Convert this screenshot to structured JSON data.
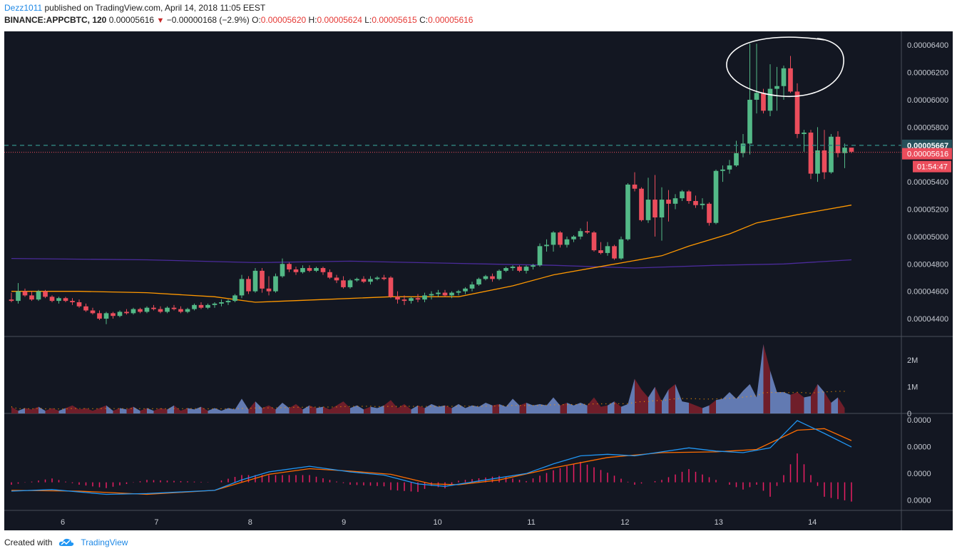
{
  "header": {
    "author": "Dezz1011",
    "published_text": "published on TradingView.com, April 14, 2018 11:05 EEST",
    "symbol": "BINANCE:APPCBTC, 120",
    "last": "0.00005616",
    "change": "−0.00000168 (−2.9%)",
    "o_label": "O:",
    "o": "0.00005620",
    "h_label": "H:",
    "h": "0.00005624",
    "l_label": "L:",
    "l": "0.00005615",
    "c_label": "C:",
    "c": "0.00005616"
  },
  "footer": {
    "created_with": "Created with",
    "brand": "TradingView"
  },
  "colors": {
    "background": "#131722",
    "up": "#53b987",
    "down": "#eb4d5c",
    "ma_fast": "#ff9800",
    "ma_slow": "#4a2b9a",
    "macd": "#2196f3",
    "signal": "#ff6d00",
    "hist": "#e91e63",
    "vol_up": "#6b85c2",
    "vol_down": "#7a1f2b"
  },
  "chart_data": [
    {
      "type": "candlestick",
      "y_axis_ticks": [
        "0.00006400",
        "0.00006200",
        "0.00006000",
        "0.00005800",
        "0.00005400",
        "0.00005200",
        "0.00005000",
        "0.00004800",
        "0.00004600",
        "0.00004400"
      ],
      "ylim": [
        4.27e-05,
        6.5e-05
      ],
      "x_tick_labels": [
        "6",
        "7",
        "8",
        "9",
        "10",
        "11",
        "12",
        "13",
        "14"
      ],
      "price_labels": {
        "line": "0.00005667",
        "last": "0.00005616",
        "countdown": "01:54:47"
      },
      "candles_ohlc_e8": [
        [
          4540,
          4590,
          4520,
          4530
        ],
        [
          4530,
          4660,
          4510,
          4600
        ],
        [
          4600,
          4620,
          4560,
          4570
        ],
        [
          4570,
          4600,
          4530,
          4540
        ],
        [
          4540,
          4610,
          4530,
          4600
        ],
        [
          4600,
          4610,
          4550,
          4560
        ],
        [
          4560,
          4570,
          4520,
          4530
        ],
        [
          4530,
          4560,
          4510,
          4550
        ],
        [
          4550,
          4560,
          4520,
          4530
        ],
        [
          4530,
          4550,
          4500,
          4520
        ],
        [
          4520,
          4540,
          4480,
          4490
        ],
        [
          4490,
          4510,
          4450,
          4460
        ],
        [
          4460,
          4480,
          4430,
          4440
        ],
        [
          4440,
          4460,
          4390,
          4400
        ],
        [
          4400,
          4450,
          4360,
          4440
        ],
        [
          4440,
          4450,
          4400,
          4420
        ],
        [
          4420,
          4460,
          4410,
          4450
        ],
        [
          4450,
          4470,
          4430,
          4440
        ],
        [
          4440,
          4480,
          4430,
          4470
        ],
        [
          4470,
          4480,
          4440,
          4450
        ],
        [
          4450,
          4490,
          4440,
          4480
        ],
        [
          4480,
          4500,
          4460,
          4470
        ],
        [
          4470,
          4490,
          4440,
          4450
        ],
        [
          4450,
          4490,
          4440,
          4480
        ],
        [
          4480,
          4500,
          4460,
          4470
        ],
        [
          4470,
          4490,
          4440,
          4450
        ],
        [
          4450,
          4480,
          4440,
          4470
        ],
        [
          4470,
          4510,
          4460,
          4500
        ],
        [
          4500,
          4520,
          4470,
          4480
        ],
        [
          4480,
          4510,
          4470,
          4500
        ],
        [
          4500,
          4520,
          4480,
          4510
        ],
        [
          4510,
          4540,
          4490,
          4520
        ],
        [
          4520,
          4540,
          4500,
          4530
        ],
        [
          4530,
          4580,
          4520,
          4570
        ],
        [
          4570,
          4720,
          4550,
          4690
        ],
        [
          4690,
          4710,
          4580,
          4600
        ],
        [
          4600,
          4770,
          4590,
          4750
        ],
        [
          4750,
          4770,
          4590,
          4620
        ],
        [
          4620,
          4710,
          4570,
          4600
        ],
        [
          4600,
          4730,
          4590,
          4710
        ],
        [
          4710,
          4840,
          4700,
          4800
        ],
        [
          4800,
          4810,
          4740,
          4760
        ],
        [
          4760,
          4780,
          4720,
          4740
        ],
        [
          4740,
          4790,
          4730,
          4770
        ],
        [
          4770,
          4790,
          4740,
          4750
        ],
        [
          4750,
          4780,
          4740,
          4770
        ],
        [
          4770,
          4780,
          4720,
          4740
        ],
        [
          4740,
          4760,
          4690,
          4700
        ],
        [
          4700,
          4720,
          4660,
          4680
        ],
        [
          4680,
          4710,
          4620,
          4630
        ],
        [
          4630,
          4690,
          4620,
          4680
        ],
        [
          4680,
          4700,
          4670,
          4690
        ],
        [
          4690,
          4710,
          4660,
          4670
        ],
        [
          4670,
          4710,
          4650,
          4690
        ],
        [
          4690,
          4710,
          4680,
          4700
        ],
        [
          4700,
          4720,
          4680,
          4690
        ],
        [
          4700,
          4710,
          4550,
          4560
        ],
        [
          4560,
          4600,
          4510,
          4540
        ],
        [
          4540,
          4570,
          4500,
          4530
        ],
        [
          4530,
          4560,
          4510,
          4550
        ],
        [
          4550,
          4580,
          4520,
          4540
        ],
        [
          4540,
          4590,
          4520,
          4570
        ],
        [
          4570,
          4600,
          4540,
          4580
        ],
        [
          4580,
          4610,
          4560,
          4590
        ],
        [
          4590,
          4610,
          4560,
          4570
        ],
        [
          4570,
          4600,
          4550,
          4590
        ],
        [
          4590,
          4610,
          4570,
          4600
        ],
        [
          4600,
          4630,
          4580,
          4620
        ],
        [
          4620,
          4670,
          4600,
          4650
        ],
        [
          4650,
          4700,
          4640,
          4690
        ],
        [
          4690,
          4720,
          4680,
          4710
        ],
        [
          4710,
          4730,
          4670,
          4690
        ],
        [
          4690,
          4760,
          4680,
          4750
        ],
        [
          4750,
          4780,
          4740,
          4770
        ],
        [
          4770,
          4790,
          4750,
          4780
        ],
        [
          4780,
          4790,
          4740,
          4750
        ],
        [
          4750,
          4790,
          4730,
          4780
        ],
        [
          4780,
          4800,
          4760,
          4790
        ],
        [
          4790,
          4950,
          4780,
          4930
        ],
        [
          4930,
          4980,
          4890,
          4940
        ],
        [
          4940,
          5040,
          4890,
          5030
        ],
        [
          5030,
          5040,
          4920,
          4940
        ],
        [
          4940,
          5000,
          4920,
          4980
        ],
        [
          4980,
          5010,
          4960,
          5000
        ],
        [
          5000,
          5060,
          4980,
          5040
        ],
        [
          5040,
          5110,
          5020,
          5030
        ],
        [
          5030,
          5040,
          4890,
          4900
        ],
        [
          4900,
          4960,
          4870,
          4880
        ],
        [
          4880,
          4960,
          4860,
          4930
        ],
        [
          4930,
          4940,
          4830,
          4840
        ],
        [
          4840,
          5000,
          4830,
          4980
        ],
        [
          4980,
          5390,
          4970,
          5380
        ],
        [
          5380,
          5470,
          5330,
          5350
        ],
        [
          5350,
          5360,
          5110,
          5120
        ],
        [
          5120,
          5430,
          5100,
          5270
        ],
        [
          5270,
          5450,
          5000,
          5140
        ],
        [
          5140,
          5360,
          4970,
          5270
        ],
        [
          5270,
          5340,
          5110,
          5240
        ],
        [
          5240,
          5310,
          5200,
          5280
        ],
        [
          5280,
          5340,
          5260,
          5330
        ],
        [
          5330,
          5340,
          5240,
          5260
        ],
        [
          5260,
          5300,
          5210,
          5230
        ],
        [
          5230,
          5280,
          5200,
          5240
        ],
        [
          5240,
          5250,
          5080,
          5100
        ],
        [
          5100,
          5490,
          5090,
          5480
        ],
        [
          5480,
          5520,
          5400,
          5490
        ],
        [
          5490,
          5560,
          5460,
          5520
        ],
        [
          5520,
          5700,
          5510,
          5610
        ],
        [
          5610,
          5750,
          5580,
          5680
        ],
        [
          5680,
          6410,
          5600,
          6000
        ],
        [
          6000,
          6410,
          5900,
          6050
        ],
        [
          6050,
          6080,
          5900,
          5920
        ],
        [
          5920,
          6260,
          5880,
          6080
        ],
        [
          6080,
          6240,
          5920,
          6100
        ],
        [
          6100,
          6250,
          6000,
          6230
        ],
        [
          6230,
          6320,
          6050,
          6060
        ],
        [
          6060,
          6120,
          5720,
          5750
        ],
        [
          5750,
          5780,
          5620,
          5760
        ],
        [
          5760,
          5780,
          5420,
          5460
        ],
        [
          5460,
          5800,
          5400,
          5630
        ],
        [
          5630,
          5780,
          5420,
          5470
        ],
        [
          5470,
          5750,
          5460,
          5730
        ],
        [
          5730,
          5770,
          5580,
          5610
        ],
        [
          5610,
          5680,
          5500,
          5650
        ],
        [
          5650,
          5650,
          5610,
          5620
        ]
      ],
      "ma_fast_e8": [
        [
          0,
          4600
        ],
        [
          10,
          4600
        ],
        [
          20,
          4590
        ],
        [
          30,
          4560
        ],
        [
          36,
          4520
        ],
        [
          46,
          4540
        ],
        [
          56,
          4560
        ],
        [
          66,
          4560
        ],
        [
          74,
          4640
        ],
        [
          80,
          4720
        ],
        [
          88,
          4790
        ],
        [
          96,
          4860
        ],
        [
          100,
          4930
        ],
        [
          106,
          5020
        ],
        [
          110,
          5100
        ],
        [
          116,
          5160
        ],
        [
          124,
          5230
        ]
      ],
      "ma_slow_e8": [
        [
          0,
          4840
        ],
        [
          20,
          4830
        ],
        [
          36,
          4810
        ],
        [
          50,
          4820
        ],
        [
          60,
          4810
        ],
        [
          70,
          4800
        ],
        [
          80,
          4790
        ],
        [
          92,
          4770
        ],
        [
          104,
          4790
        ],
        [
          114,
          4800
        ],
        [
          124,
          4830
        ]
      ]
    },
    {
      "type": "area",
      "name": "Volume",
      "y_axis_ticks": [
        "2M",
        "1M",
        "0"
      ],
      "ylim": [
        0,
        2.7
      ],
      "values_m": [
        0.25,
        0.1,
        0.2,
        0.15,
        0.25,
        0.1,
        0.2,
        0.1,
        0.2,
        0.3,
        0.15,
        0.2,
        0.1,
        0.2,
        0.3,
        0.1,
        0.2,
        0.15,
        0.25,
        0.1,
        0.2,
        0.1,
        0.2,
        0.15,
        0.3,
        0.1,
        0.2,
        0.15,
        0.25,
        0.1,
        0.2,
        0.1,
        0.2,
        0.15,
        0.55,
        0.15,
        0.45,
        0.2,
        0.3,
        0.15,
        0.4,
        0.2,
        0.35,
        0.15,
        0.3,
        0.2,
        0.25,
        0.15,
        0.3,
        0.45,
        0.2,
        0.3,
        0.15,
        0.25,
        0.2,
        0.3,
        0.5,
        0.2,
        0.35,
        0.15,
        0.3,
        0.2,
        0.35,
        0.25,
        0.3,
        0.2,
        0.35,
        0.2,
        0.3,
        0.25,
        0.4,
        0.3,
        0.35,
        0.25,
        0.55,
        0.3,
        0.4,
        0.3,
        0.35,
        0.3,
        0.6,
        0.3,
        0.4,
        0.3,
        0.4,
        0.3,
        0.6,
        0.25,
        0.3,
        0.45,
        0.25,
        0.35,
        1.3,
        0.9,
        0.6,
        1.0,
        0.45,
        0.9,
        1.1,
        0.45,
        0.4,
        0.3,
        0.2,
        0.3,
        0.5,
        0.55,
        0.8,
        0.55,
        0.85,
        1.1,
        0.6,
        2.6,
        1.6,
        0.8,
        0.8,
        0.7,
        0.8,
        0.6,
        0.65,
        1.1,
        0.8,
        0.4,
        0.6,
        0.2
      ]
    },
    {
      "type": "line",
      "name": "MACD",
      "y_axis_ticks": [
        "0.0000",
        "0.0000",
        "0.0000",
        "0.0000"
      ],
      "ylim": [
        -0.2,
        1.0
      ],
      "macd_points": [
        [
          0,
          0.04
        ],
        [
          6,
          0.06
        ],
        [
          14,
          0.0
        ],
        [
          20,
          0.01
        ],
        [
          30,
          0.05
        ],
        [
          34,
          0.18
        ],
        [
          38,
          0.28
        ],
        [
          44,
          0.35
        ],
        [
          50,
          0.28
        ],
        [
          55,
          0.24
        ],
        [
          60,
          0.13
        ],
        [
          64,
          0.1
        ],
        [
          70,
          0.18
        ],
        [
          76,
          0.26
        ],
        [
          80,
          0.38
        ],
        [
          84,
          0.48
        ],
        [
          88,
          0.5
        ],
        [
          92,
          0.48
        ],
        [
          96,
          0.53
        ],
        [
          100,
          0.58
        ],
        [
          104,
          0.54
        ],
        [
          108,
          0.52
        ],
        [
          112,
          0.58
        ],
        [
          116,
          0.92
        ],
        [
          120,
          0.76
        ],
        [
          124,
          0.59
        ]
      ],
      "signal_points": [
        [
          0,
          0.05
        ],
        [
          10,
          0.04
        ],
        [
          20,
          0.0
        ],
        [
          30,
          0.05
        ],
        [
          38,
          0.25
        ],
        [
          44,
          0.32
        ],
        [
          50,
          0.29
        ],
        [
          56,
          0.25
        ],
        [
          62,
          0.13
        ],
        [
          66,
          0.12
        ],
        [
          72,
          0.18
        ],
        [
          80,
          0.33
        ],
        [
          88,
          0.46
        ],
        [
          96,
          0.52
        ],
        [
          104,
          0.53
        ],
        [
          110,
          0.56
        ],
        [
          116,
          0.8
        ],
        [
          120,
          0.82
        ],
        [
          124,
          0.67
        ]
      ]
    }
  ]
}
